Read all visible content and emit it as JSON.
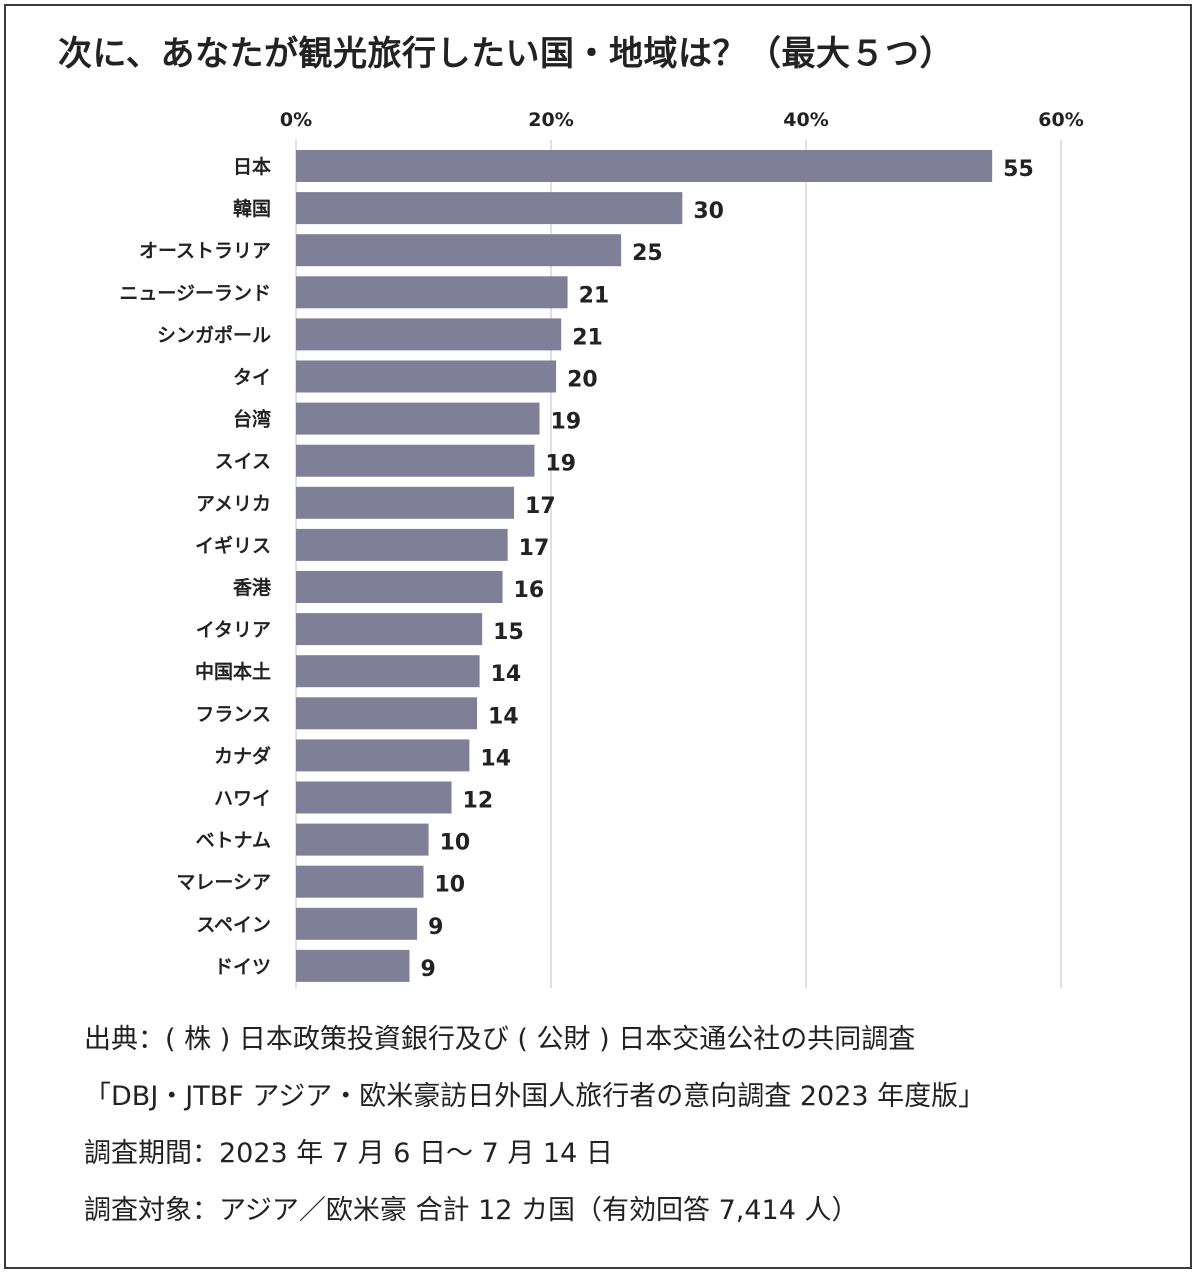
{
  "title": "次に、あなたが観光旅行したい国・地域は？（最大５つ）",
  "colors": {
    "bar": "#7f7f98",
    "grid": "#d6d6d6",
    "text": "#222222"
  },
  "chart_data": {
    "type": "bar",
    "orientation": "horizontal",
    "title": "次に、あなたが観光旅行したい国・地域は？（最大５つ）",
    "xlim": [
      0,
      60
    ],
    "xticks": [
      "0%",
      "20%",
      "40%",
      "60%"
    ],
    "grid": true,
    "categories": [
      "日本",
      "韓国",
      "オーストラリア",
      "ニュージーランド",
      "シンガポール",
      "タイ",
      "台湾",
      "スイス",
      "アメリカ",
      "イギリス",
      "香港",
      "イタリア",
      "中国本土",
      "フランス",
      "カナダ",
      "ハワイ",
      "ベトナム",
      "マレーシア",
      "スペイン",
      "ドイツ"
    ],
    "values": [
      55,
      30,
      25,
      21,
      21,
      20,
      19,
      19,
      17,
      17,
      16,
      15,
      14,
      14,
      14,
      12,
      10,
      10,
      9,
      9
    ],
    "bar_values": [
      54.6,
      30.3,
      25.5,
      21.3,
      20.8,
      20.4,
      19.1,
      18.7,
      17.1,
      16.6,
      16.2,
      14.6,
      14.4,
      14.2,
      13.6,
      12.2,
      10.4,
      10.0,
      9.5,
      8.9
    ]
  },
  "notes": [
    "出典：( 株 ) 日本政策投資銀行及び ( 公財 ) 日本交通公社の共同調査",
    "「DBJ・JTBF アジア・欧米豪訪日外国人旅行者の意向調査 2023 年度版」",
    "調査期間：2023 年 7 月 6 日～ 7 月 14 日",
    "調査対象：アジア／欧米豪 合計 12 カ国（有効回答 7,414 人）"
  ]
}
